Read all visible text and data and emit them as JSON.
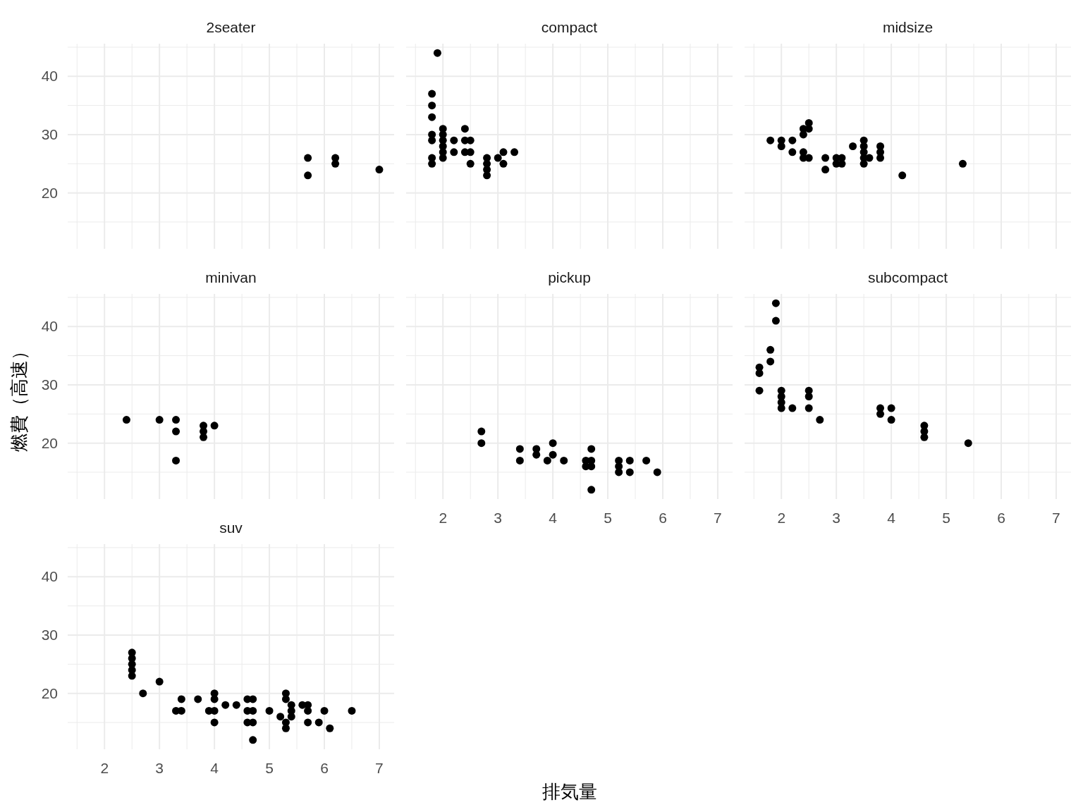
{
  "chart_data": [
    {
      "type": "scatter",
      "title": "2seater",
      "xlim": [
        1.33,
        7.27
      ],
      "ylim": [
        10.4,
        45.6
      ],
      "xticks": [
        {
          "value": 1.5,
          "label": null
        },
        2,
        {
          "value": 2.5,
          "label": null
        },
        3,
        {
          "value": 3.5,
          "label": null
        },
        4,
        {
          "value": 4.5,
          "label": null
        },
        5,
        {
          "value": 5.5,
          "label": null
        },
        6,
        {
          "value": 6.5,
          "label": null
        },
        7
      ],
      "yticks": [
        {
          "value": 15,
          "label": null
        },
        20,
        {
          "value": 25,
          "label": null
        },
        30,
        {
          "value": 35,
          "label": null
        },
        40,
        {
          "value": 45,
          "label": null
        }
      ],
      "grid": true,
      "marker": "circle",
      "tick_labels": "y",
      "series": [
        {
          "color": "#000000",
          "x": [
            5.7,
            5.7,
            6.2,
            6.2,
            7.0
          ],
          "values": [
            26,
            23,
            26,
            25,
            24
          ]
        }
      ]
    },
    {
      "type": "scatter",
      "title": "compact",
      "xlim": [
        1.33,
        7.27
      ],
      "ylim": [
        10.4,
        45.6
      ],
      "xticks": [
        {
          "value": 1.5,
          "label": null
        },
        2,
        {
          "value": 2.5,
          "label": null
        },
        3,
        {
          "value": 3.5,
          "label": null
        },
        4,
        {
          "value": 4.5,
          "label": null
        },
        5,
        {
          "value": 5.5,
          "label": null
        },
        6,
        {
          "value": 6.5,
          "label": null
        },
        7
      ],
      "yticks": [
        {
          "value": 15,
          "label": null
        },
        20,
        {
          "value": 25,
          "label": null
        },
        30,
        {
          "value": 35,
          "label": null
        },
        40,
        {
          "value": 45,
          "label": null
        }
      ],
      "grid": true,
      "marker": "circle",
      "tick_labels": false,
      "series": [
        {
          "color": "#000000",
          "x": [
            1.8,
            1.8,
            1.8,
            1.8,
            1.8,
            1.8,
            1.8,
            1.9,
            2.0,
            2.0,
            2.0,
            2.0,
            2.0,
            2.0,
            2.2,
            2.2,
            2.4,
            2.4,
            2.4,
            2.5,
            2.5,
            2.5,
            2.8,
            2.8,
            2.8,
            2.8,
            3.0,
            3.1,
            3.1,
            3.3
          ],
          "values": [
            37,
            35,
            33,
            30,
            29,
            26,
            25,
            44,
            31,
            30,
            29,
            28,
            27,
            26,
            29,
            27,
            31,
            29,
            27,
            29,
            27,
            25,
            26,
            25,
            24,
            23,
            26,
            27,
            25,
            27
          ]
        }
      ]
    },
    {
      "type": "scatter",
      "title": "midsize",
      "xlim": [
        1.33,
        7.27
      ],
      "ylim": [
        10.4,
        45.6
      ],
      "xticks": [
        {
          "value": 1.5,
          "label": null
        },
        2,
        {
          "value": 2.5,
          "label": null
        },
        3,
        {
          "value": 3.5,
          "label": null
        },
        4,
        {
          "value": 4.5,
          "label": null
        },
        5,
        {
          "value": 5.5,
          "label": null
        },
        6,
        {
          "value": 6.5,
          "label": null
        },
        7
      ],
      "yticks": [
        {
          "value": 15,
          "label": null
        },
        20,
        {
          "value": 25,
          "label": null
        },
        30,
        {
          "value": 35,
          "label": null
        },
        40,
        {
          "value": 45,
          "label": null
        }
      ],
      "grid": true,
      "marker": "circle",
      "tick_labels": false,
      "series": [
        {
          "color": "#000000",
          "x": [
            1.8,
            2.0,
            2.0,
            2.2,
            2.2,
            2.4,
            2.4,
            2.4,
            2.4,
            2.5,
            2.5,
            2.5,
            2.8,
            2.8,
            3.0,
            3.0,
            3.1,
            3.1,
            3.3,
            3.5,
            3.5,
            3.5,
            3.5,
            3.5,
            3.6,
            3.8,
            3.8,
            3.8,
            4.2,
            5.3
          ],
          "values": [
            29,
            29,
            28,
            29,
            27,
            31,
            30,
            27,
            26,
            32,
            31,
            26,
            26,
            24,
            26,
            25,
            26,
            25,
            28,
            29,
            28,
            27,
            26,
            25,
            26,
            28,
            27,
            26,
            23,
            25
          ]
        }
      ]
    },
    {
      "type": "scatter",
      "title": "minivan",
      "ylabel": "燃費（高速）",
      "xlim": [
        1.33,
        7.27
      ],
      "ylim": [
        10.4,
        45.6
      ],
      "xticks": [
        {
          "value": 1.5,
          "label": null
        },
        2,
        {
          "value": 2.5,
          "label": null
        },
        3,
        {
          "value": 3.5,
          "label": null
        },
        4,
        {
          "value": 4.5,
          "label": null
        },
        5,
        {
          "value": 5.5,
          "label": null
        },
        6,
        {
          "value": 6.5,
          "label": null
        },
        7
      ],
      "yticks": [
        {
          "value": 15,
          "label": null
        },
        20,
        {
          "value": 25,
          "label": null
        },
        30,
        {
          "value": 35,
          "label": null
        },
        40,
        {
          "value": 45,
          "label": null
        }
      ],
      "grid": true,
      "marker": "circle",
      "tick_labels": "y",
      "series": [
        {
          "color": "#000000",
          "x": [
            2.4,
            3.0,
            3.3,
            3.3,
            3.3,
            3.8,
            3.8,
            3.8,
            4.0
          ],
          "values": [
            24,
            24,
            24,
            22,
            17,
            23,
            22,
            21,
            23
          ]
        }
      ]
    },
    {
      "type": "scatter",
      "title": "pickup",
      "xlabel": "排気量",
      "xlim": [
        1.33,
        7.27
      ],
      "ylim": [
        10.4,
        45.6
      ],
      "xticks": [
        {
          "value": 1.5,
          "label": null
        },
        2,
        {
          "value": 2.5,
          "label": null
        },
        3,
        {
          "value": 3.5,
          "label": null
        },
        4,
        {
          "value": 4.5,
          "label": null
        },
        5,
        {
          "value": 5.5,
          "label": null
        },
        6,
        {
          "value": 6.5,
          "label": null
        },
        7
      ],
      "yticks": [
        {
          "value": 15,
          "label": null
        },
        20,
        {
          "value": 25,
          "label": null
        },
        30,
        {
          "value": 35,
          "label": null
        },
        40,
        {
          "value": 45,
          "label": null
        }
      ],
      "grid": true,
      "marker": "circle",
      "tick_labels": "x",
      "series": [
        {
          "color": "#000000",
          "x": [
            2.7,
            2.7,
            3.4,
            3.4,
            3.7,
            3.7,
            3.9,
            4.0,
            4.0,
            4.2,
            4.6,
            4.6,
            4.7,
            4.7,
            4.7,
            4.7,
            5.2,
            5.2,
            5.2,
            5.4,
            5.4,
            5.7,
            5.9
          ],
          "values": [
            22,
            20,
            19,
            17,
            19,
            18,
            17,
            20,
            18,
            17,
            17,
            16,
            19,
            17,
            16,
            12,
            17,
            16,
            15,
            17,
            15,
            17,
            15
          ]
        }
      ]
    },
    {
      "type": "scatter",
      "title": "subcompact",
      "xlim": [
        1.33,
        7.27
      ],
      "ylim": [
        10.4,
        45.6
      ],
      "xticks": [
        {
          "value": 1.5,
          "label": null
        },
        2,
        {
          "value": 2.5,
          "label": null
        },
        3,
        {
          "value": 3.5,
          "label": null
        },
        4,
        {
          "value": 4.5,
          "label": null
        },
        5,
        {
          "value": 5.5,
          "label": null
        },
        6,
        {
          "value": 6.5,
          "label": null
        },
        7
      ],
      "yticks": [
        {
          "value": 15,
          "label": null
        },
        20,
        {
          "value": 25,
          "label": null
        },
        30,
        {
          "value": 35,
          "label": null
        },
        40,
        {
          "value": 45,
          "label": null
        }
      ],
      "grid": true,
      "marker": "circle",
      "tick_labels": "x",
      "series": [
        {
          "color": "#000000",
          "x": [
            1.6,
            1.6,
            1.6,
            1.8,
            1.8,
            1.9,
            1.9,
            2.0,
            2.0,
            2.0,
            2.0,
            2.2,
            2.5,
            2.5,
            2.5,
            2.7,
            3.8,
            3.8,
            4.0,
            4.0,
            4.6,
            4.6,
            4.6,
            5.4
          ],
          "values": [
            33,
            32,
            29,
            36,
            34,
            44,
            41,
            29,
            28,
            27,
            26,
            26,
            29,
            28,
            26,
            24,
            26,
            25,
            26,
            24,
            23,
            22,
            21,
            20
          ]
        }
      ]
    },
    {
      "type": "scatter",
      "title": "suv",
      "xlim": [
        1.33,
        7.27
      ],
      "ylim": [
        10.4,
        45.6
      ],
      "xticks": [
        {
          "value": 1.5,
          "label": null
        },
        2,
        {
          "value": 2.5,
          "label": null
        },
        3,
        {
          "value": 3.5,
          "label": null
        },
        4,
        {
          "value": 4.5,
          "label": null
        },
        5,
        {
          "value": 5.5,
          "label": null
        },
        6,
        {
          "value": 6.5,
          "label": null
        },
        7
      ],
      "yticks": [
        {
          "value": 15,
          "label": null
        },
        20,
        {
          "value": 25,
          "label": null
        },
        30,
        {
          "value": 35,
          "label": null
        },
        40,
        {
          "value": 45,
          "label": null
        }
      ],
      "grid": true,
      "marker": "circle",
      "series": [
        {
          "color": "#000000",
          "x": [
            2.5,
            2.5,
            2.5,
            2.5,
            2.5,
            2.7,
            3.0,
            3.3,
            3.4,
            3.4,
            3.7,
            3.9,
            4.0,
            4.0,
            4.0,
            4.0,
            4.2,
            4.4,
            4.6,
            4.6,
            4.6,
            4.7,
            4.7,
            4.7,
            4.7,
            5.0,
            5.2,
            5.3,
            5.3,
            5.3,
            5.3,
            5.4,
            5.4,
            5.4,
            5.6,
            5.7,
            5.7,
            5.7,
            5.9,
            6.0,
            6.1,
            6.5
          ],
          "values": [
            27,
            26,
            25,
            24,
            23,
            20,
            22,
            17,
            19,
            17,
            19,
            17,
            20,
            19,
            17,
            15,
            18,
            18,
            19,
            17,
            15,
            19,
            17,
            15,
            12,
            17,
            16,
            20,
            19,
            15,
            14,
            18,
            17,
            16,
            18,
            18,
            17,
            15,
            15,
            17,
            14,
            17
          ]
        }
      ]
    }
  ]
}
